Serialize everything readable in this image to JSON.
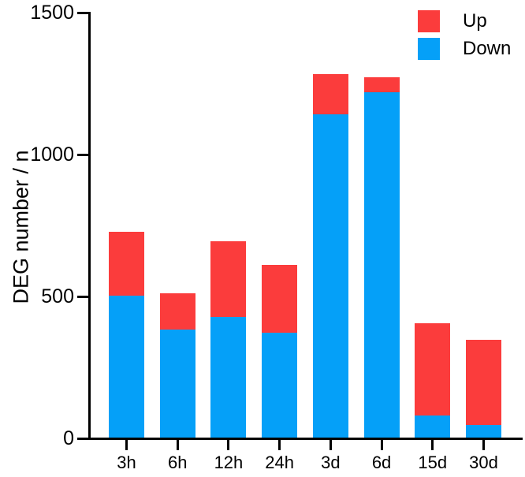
{
  "chart_data": {
    "type": "bar",
    "stacked": true,
    "title": "",
    "xlabel": "",
    "ylabel": "DEG number / n",
    "categories": [
      "3h",
      "6h",
      "12h",
      "24h",
      "3d",
      "6d",
      "15d",
      "30d"
    ],
    "series": [
      {
        "name": "Up",
        "color": "#FB3C3C",
        "values": [
          225,
          128,
          268,
          238,
          140,
          52,
          325,
          300
        ]
      },
      {
        "name": "Down",
        "color": "#05A0F8",
        "values": [
          500,
          380,
          425,
          370,
          1140,
          1218,
          78,
          45
        ]
      }
    ],
    "totals": [
      725,
      508,
      693,
      608,
      1280,
      1270,
      403,
      345
    ],
    "ylim": [
      0,
      1500
    ],
    "yticks": [
      0,
      500,
      1000,
      1500
    ],
    "grid": false,
    "legend_position": "top-right",
    "axis_color": "#000000"
  }
}
